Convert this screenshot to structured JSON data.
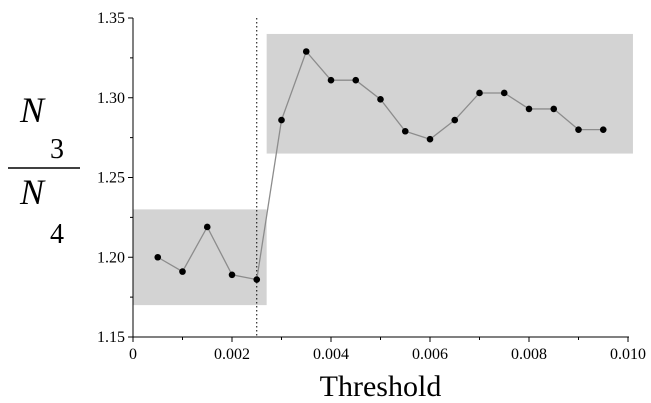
{
  "chart_data": {
    "type": "scatter",
    "xlabel": "Threshold",
    "ylabel": {
      "numerator": "N",
      "numerator_sub": "3",
      "denominator": "N",
      "denominator_sub": "4"
    },
    "xlim": [
      0,
      0.01
    ],
    "ylim": [
      1.15,
      1.35
    ],
    "xticks": [
      "0",
      "0.002",
      "0.004",
      "0.006",
      "0.008",
      "0.010"
    ],
    "yticks": [
      "1.15",
      "1.20",
      "1.25",
      "1.30",
      "1.35"
    ],
    "grid": false,
    "series": [
      {
        "x": [
          0.0005,
          0.001,
          0.0015,
          0.002,
          0.0025,
          0.003,
          0.0035,
          0.004,
          0.0045,
          0.005,
          0.0055,
          0.006,
          0.0065,
          0.007,
          0.0075,
          0.008,
          0.0085,
          0.009,
          0.0095
        ],
        "y": [
          1.2,
          1.191,
          1.219,
          1.189,
          1.186,
          1.286,
          1.329,
          1.311,
          1.311,
          1.299,
          1.279,
          1.274,
          1.286,
          1.303,
          1.303,
          1.293,
          1.293,
          1.28,
          1.28
        ]
      }
    ],
    "vline_x": 0.0025,
    "shaded_regions": [
      {
        "x0": 0.0,
        "x1": 0.0027,
        "y0": 1.17,
        "y1": 1.23
      },
      {
        "x0": 0.0027,
        "x1": 0.0101,
        "y0": 1.265,
        "y1": 1.34
      }
    ],
    "colors": {
      "shade": "#d3d3d3",
      "line": "#8c8c8c",
      "marker": "#000000"
    }
  }
}
